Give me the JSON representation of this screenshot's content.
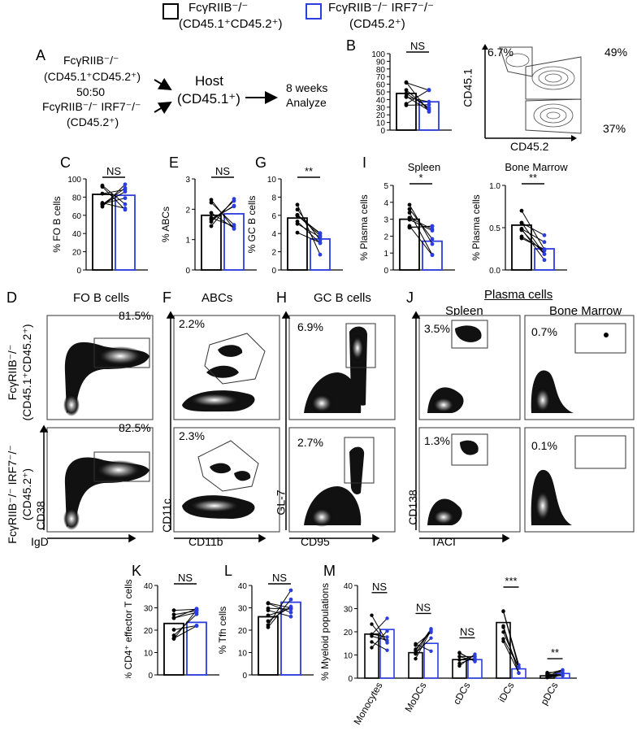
{
  "legend": {
    "wt": {
      "line1": "FcγRIIB⁻/⁻",
      "line2": "(CD45.1⁺CD45.2⁺)",
      "color": "#000000"
    },
    "ko": {
      "line1": "FcγRIIB⁻/⁻ IRF7⁻/⁻",
      "line2": "(CD45.2⁺)",
      "color": "#2b3de0"
    }
  },
  "panelA": {
    "letter": "A",
    "donor1_l1": "FcγRIIB⁻/⁻",
    "donor1_l2": "(CD45.1⁺CD45.2⁺)",
    "ratio": "50:50",
    "donor2_l1": "FcγRIIB⁻/⁻ IRF7⁻/⁻",
    "donor2_l2": "(CD45.2⁺)",
    "host_l1": "Host",
    "host_l2": "(CD45.1⁺)",
    "out_l1": "8 weeks",
    "out_l2": "Analyze"
  },
  "panelB": {
    "letter": "B",
    "sig": "NS",
    "flow_q1": "6.7%",
    "flow_q2": "49%",
    "flow_q3": "37%",
    "xaxis": "CD45.2",
    "yaxis": "CD45.1"
  },
  "bars": {
    "B": {
      "ylabel": "",
      "sig": "NS",
      "ticks": [
        "0",
        "10",
        "20",
        "30",
        "40",
        "50",
        "60",
        "70",
        "80",
        "90",
        "100"
      ],
      "ymax": 100,
      "wt": 48,
      "ko": 37
    },
    "C": {
      "letter": "C",
      "ylabel": "% FO B cells",
      "sig": "NS",
      "ticks": [
        "0",
        "20",
        "40",
        "60",
        "80",
        "100"
      ],
      "ymax": 100,
      "wt": 83,
      "ko": 82
    },
    "E": {
      "letter": "E",
      "ylabel": "% ABCs",
      "sig": "NS",
      "ticks": [
        "0",
        "1",
        "2",
        "3"
      ],
      "ymax": 3,
      "wt": 1.8,
      "ko": 1.85
    },
    "G": {
      "letter": "G",
      "ylabel": "% GC B cells",
      "sig": "**",
      "ticks": [
        "0",
        "2",
        "4",
        "6",
        "8",
        "10"
      ],
      "ymax": 10,
      "wt": 5.7,
      "ko": 3.4
    },
    "I1": {
      "letter": "I",
      "title": "Spleen",
      "ylabel": "% Plasma cells",
      "sig": "*",
      "ticks": [
        "0",
        "1",
        "2",
        "3",
        "4",
        "5"
      ],
      "ymax": 5,
      "wt": 3.0,
      "ko": 1.7
    },
    "I2": {
      "title": "Bone Marrow",
      "ylabel": "% Plasma cells",
      "sig": "**",
      "ticks": [
        "0.0",
        "0.5",
        "1.0"
      ],
      "ymax": 1.0,
      "wt": 0.53,
      "ko": 0.25
    },
    "K": {
      "letter": "K",
      "ylabel": "% CD4⁺ effector T cells",
      "sig": "NS",
      "ticks": [
        "0",
        "10",
        "20",
        "30",
        "40"
      ],
      "ymax": 40,
      "wt": 23,
      "ko": 23.5
    },
    "L": {
      "letter": "L",
      "ylabel": "% Tfh cells",
      "sig": "NS",
      "ticks": [
        "0",
        "10",
        "20",
        "30",
        "40"
      ],
      "ymax": 40,
      "wt": 26,
      "ko": 32.5
    }
  },
  "panelM": {
    "letter": "M",
    "ylabel": "% Myeloid populations",
    "ticks": [
      "0",
      "10",
      "20",
      "30",
      "40"
    ],
    "ymax": 40,
    "categories": [
      "Monocytes",
      "MoDCs",
      "cDCs",
      "iDCs",
      "pDCs"
    ],
    "sig": [
      "NS",
      "NS",
      "NS",
      "***",
      "**"
    ],
    "wt": [
      19,
      11,
      8,
      24,
      1
    ],
    "ko": [
      21,
      15,
      8,
      4,
      2
    ]
  },
  "flow": {
    "D": {
      "letter": "D",
      "title": "FO B cells",
      "top_pct": "81.5%",
      "bot_pct": "82.5%",
      "xaxis": "IgD",
      "yaxis": "CD38",
      "row1_l1": "FcγRIIB⁻/⁻",
      "row1_l2": "(CD45.1⁺CD45.2⁺)",
      "row2_l1": "FcγRIIB⁻/⁻ IRF7⁻/⁻",
      "row2_l2": "(CD45.2⁺)"
    },
    "F": {
      "letter": "F",
      "title": "ABCs",
      "top_pct": "2.2%",
      "bot_pct": "2.3%",
      "xaxis": "CD11b",
      "yaxis": "CD11c"
    },
    "H": {
      "letter": "H",
      "title": "GC B cells",
      "top_pct": "6.9%",
      "bot_pct": "2.7%",
      "xaxis": "CD95",
      "yaxis": "GL-7"
    },
    "J": {
      "letter": "J",
      "header": "Plasma cells",
      "title1": "Spleen",
      "title2": "Bone Marrow",
      "s_top": "3.5%",
      "s_bot": "1.3%",
      "b_top": "0.7%",
      "b_bot": "0.1%",
      "xaxis": "TACI",
      "yaxis": "CD138"
    }
  }
}
